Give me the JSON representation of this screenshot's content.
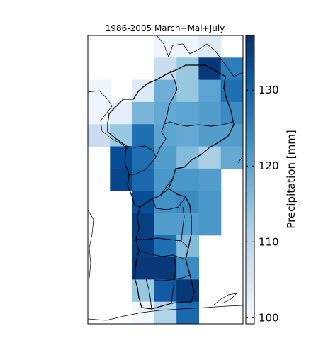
{
  "chart_data": {
    "type": "heatmap",
    "title": "1986-2005 March+Mai+July",
    "colorbar": {
      "label": "Precipitation [mm]",
      "vmin": 99.2,
      "vmax": 137.2,
      "ticks": [
        100,
        110,
        120,
        130
      ],
      "colormap": "Blues",
      "colormap_stops": [
        "#f7fbff",
        "#deebf7",
        "#c6dbef",
        "#9ecae1",
        "#6baed6",
        "#4292c6",
        "#2171b5",
        "#08519c",
        "#08306b"
      ]
    },
    "grid": {
      "n_cols": 7,
      "n_rows": 13,
      "rows": [
        [
          null,
          null,
          null,
          101,
          101,
          104,
          null
        ],
        [
          null,
          null,
          null,
          108,
          114,
          136,
          126
        ],
        [
          101,
          null,
          104,
          118,
          114,
          120,
          128
        ],
        [
          101,
          103,
          117,
          119,
          120,
          121,
          124
        ],
        [
          108,
          114,
          128,
          120,
          119,
          121,
          121
        ],
        [
          null,
          133,
          128,
          121,
          116,
          112,
          119
        ],
        [
          null,
          134,
          129,
          122,
          122,
          121,
          null
        ],
        [
          null,
          null,
          133,
          123,
          124,
          122,
          null
        ],
        [
          null,
          null,
          135,
          121,
          121,
          122,
          null
        ],
        [
          null,
          null,
          135,
          128,
          116,
          null,
          null
        ],
        [
          null,
          null,
          136,
          136,
          124,
          null,
          null
        ],
        [
          null,
          null,
          114,
          131,
          136,
          null,
          null
        ],
        [
          null,
          null,
          100,
          111,
          129,
          null,
          null
        ]
      ]
    }
  }
}
